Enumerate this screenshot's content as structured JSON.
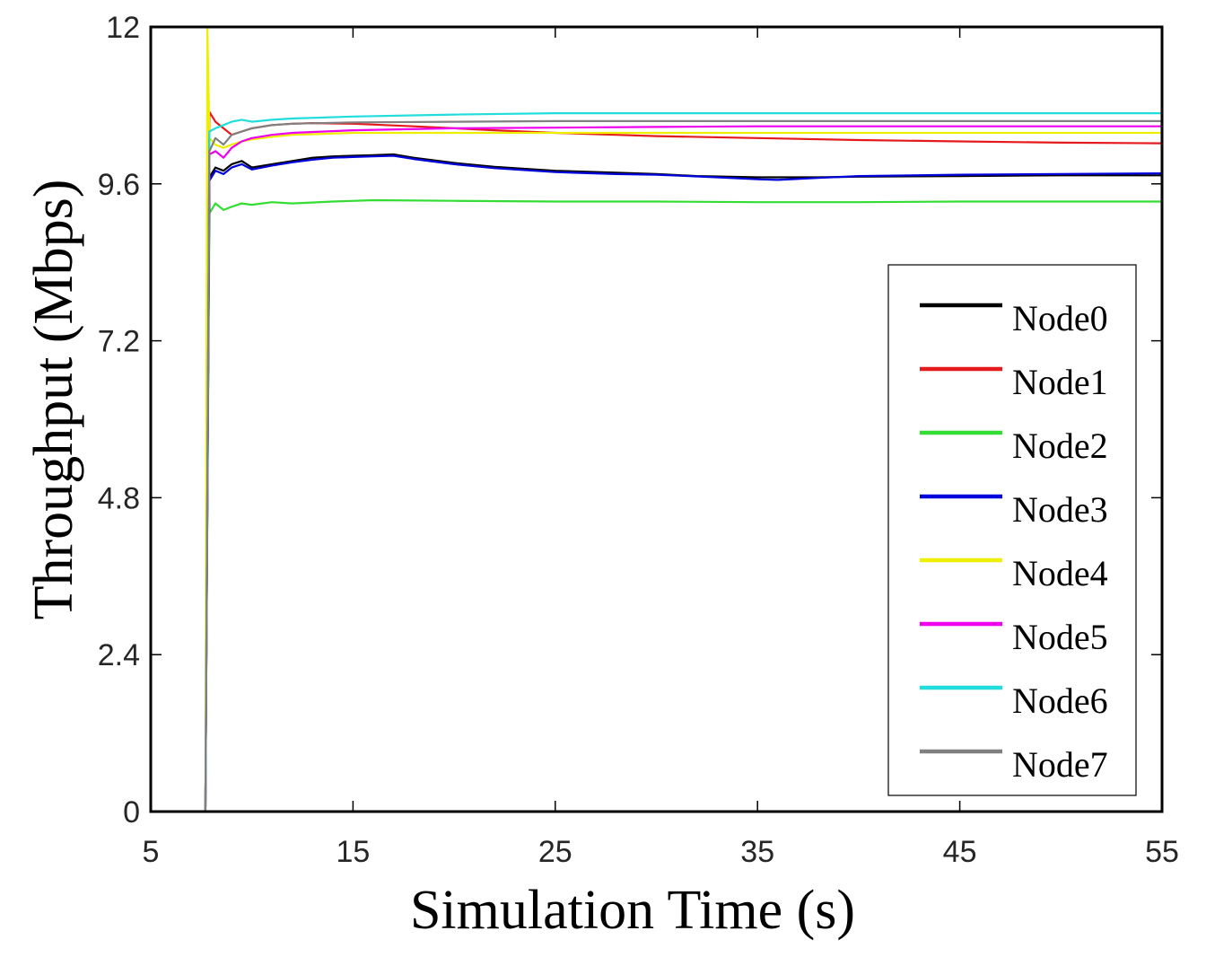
{
  "chart_data": {
    "type": "line",
    "title": "",
    "xlabel": "Simulation Time (s)",
    "ylabel": "Throughput (Mbps)",
    "xlim": [
      5,
      55
    ],
    "ylim": [
      0,
      12
    ],
    "xticks": [
      5,
      15,
      25,
      35,
      45,
      55
    ],
    "yticks": [
      0,
      2.4,
      4.8,
      7.2,
      9.6,
      12
    ],
    "ytick_labels": [
      "0",
      "2.4",
      "4.8",
      "7.2",
      "9.6",
      "12"
    ],
    "grid": false,
    "legend_position": "bottom-right",
    "series": [
      {
        "name": "Node0",
        "color": "#000000",
        "x": [
          7.7,
          7.9,
          8.2,
          8.6,
          9.0,
          9.5,
          10.0,
          11,
          12,
          13,
          14,
          15,
          16,
          17,
          18,
          20,
          22,
          25,
          28,
          30,
          32,
          35,
          38,
          40,
          45,
          50,
          55
        ],
        "y": [
          0,
          9.7,
          9.85,
          9.8,
          9.9,
          9.95,
          9.85,
          9.9,
          9.95,
          10.0,
          10.02,
          10.03,
          10.04,
          10.05,
          10.0,
          9.92,
          9.86,
          9.8,
          9.77,
          9.75,
          9.72,
          9.7,
          9.7,
          9.71,
          9.72,
          9.73,
          9.73
        ]
      },
      {
        "name": "Node1",
        "color": "#e41a1c",
        "x": [
          7.7,
          7.9,
          8.2,
          8.6,
          9.0,
          9.5,
          10.0,
          11,
          12,
          13,
          15,
          18,
          20,
          22,
          25,
          28,
          30,
          35,
          40,
          45,
          50,
          55
        ],
        "y": [
          0,
          10.7,
          10.55,
          10.45,
          10.35,
          10.4,
          10.45,
          10.5,
          10.52,
          10.53,
          10.52,
          10.48,
          10.45,
          10.42,
          10.38,
          10.35,
          10.33,
          10.3,
          10.27,
          10.25,
          10.23,
          10.22
        ]
      },
      {
        "name": "Node2",
        "color": "#33dd33",
        "x": [
          7.7,
          7.9,
          8.2,
          8.6,
          9.0,
          9.5,
          10.0,
          11,
          12,
          14,
          16,
          20,
          25,
          30,
          35,
          40,
          45,
          50,
          55
        ],
        "y": [
          0,
          9.15,
          9.3,
          9.2,
          9.25,
          9.3,
          9.28,
          9.32,
          9.3,
          9.33,
          9.35,
          9.34,
          9.33,
          9.33,
          9.32,
          9.32,
          9.33,
          9.33,
          9.33
        ]
      },
      {
        "name": "Node3",
        "color": "#0000dd",
        "x": [
          7.7,
          7.9,
          8.2,
          8.6,
          9.0,
          9.5,
          10.0,
          11,
          12,
          13,
          14,
          15,
          16,
          17,
          18,
          20,
          22,
          25,
          28,
          30,
          33,
          35,
          36,
          38,
          40,
          45,
          50,
          55
        ],
        "y": [
          0,
          9.65,
          9.8,
          9.75,
          9.85,
          9.9,
          9.82,
          9.88,
          9.93,
          9.97,
          10.0,
          10.01,
          10.02,
          10.03,
          9.98,
          9.9,
          9.84,
          9.78,
          9.75,
          9.74,
          9.7,
          9.67,
          9.66,
          9.69,
          9.72,
          9.74,
          9.75,
          9.76
        ]
      },
      {
        "name": "Node4",
        "color": "#eeee00",
        "x": [
          7.7,
          7.8,
          7.9,
          8.2,
          8.6,
          9.0,
          9.5,
          10.0,
          11,
          12,
          15,
          20,
          25,
          30,
          35,
          40,
          45,
          50,
          55
        ],
        "y": [
          0,
          12,
          10.3,
          10.2,
          10.15,
          10.2,
          10.25,
          10.28,
          10.32,
          10.35,
          10.38,
          10.38,
          10.38,
          10.38,
          10.38,
          10.38,
          10.38,
          10.38,
          10.38
        ]
      },
      {
        "name": "Node5",
        "color": "#ee00ee",
        "x": [
          7.7,
          7.9,
          8.2,
          8.6,
          9.0,
          9.5,
          10.0,
          11,
          12,
          15,
          20,
          25,
          30,
          35,
          40,
          45,
          50,
          55
        ],
        "y": [
          0,
          10.05,
          10.1,
          10.0,
          10.15,
          10.25,
          10.3,
          10.35,
          10.38,
          10.42,
          10.45,
          10.46,
          10.47,
          10.48,
          10.48,
          10.48,
          10.48,
          10.48
        ]
      },
      {
        "name": "Node6",
        "color": "#22dddd",
        "x": [
          7.7,
          7.9,
          8.2,
          8.6,
          9.0,
          9.5,
          10.0,
          11,
          12,
          15,
          20,
          25,
          30,
          35,
          40,
          45,
          50,
          55
        ],
        "y": [
          0,
          10.4,
          10.45,
          10.5,
          10.55,
          10.58,
          10.55,
          10.58,
          10.6,
          10.63,
          10.66,
          10.68,
          10.68,
          10.68,
          10.68,
          10.68,
          10.68,
          10.68
        ]
      },
      {
        "name": "Node7",
        "color": "#808080",
        "x": [
          7.7,
          7.9,
          8.2,
          8.6,
          9.0,
          9.5,
          10.0,
          11,
          12,
          15,
          20,
          25,
          30,
          35,
          40,
          45,
          50,
          55
        ],
        "y": [
          0,
          10.1,
          10.3,
          10.2,
          10.35,
          10.4,
          10.45,
          10.5,
          10.52,
          10.54,
          10.55,
          10.56,
          10.56,
          10.56,
          10.56,
          10.56,
          10.56,
          10.56
        ]
      }
    ]
  }
}
